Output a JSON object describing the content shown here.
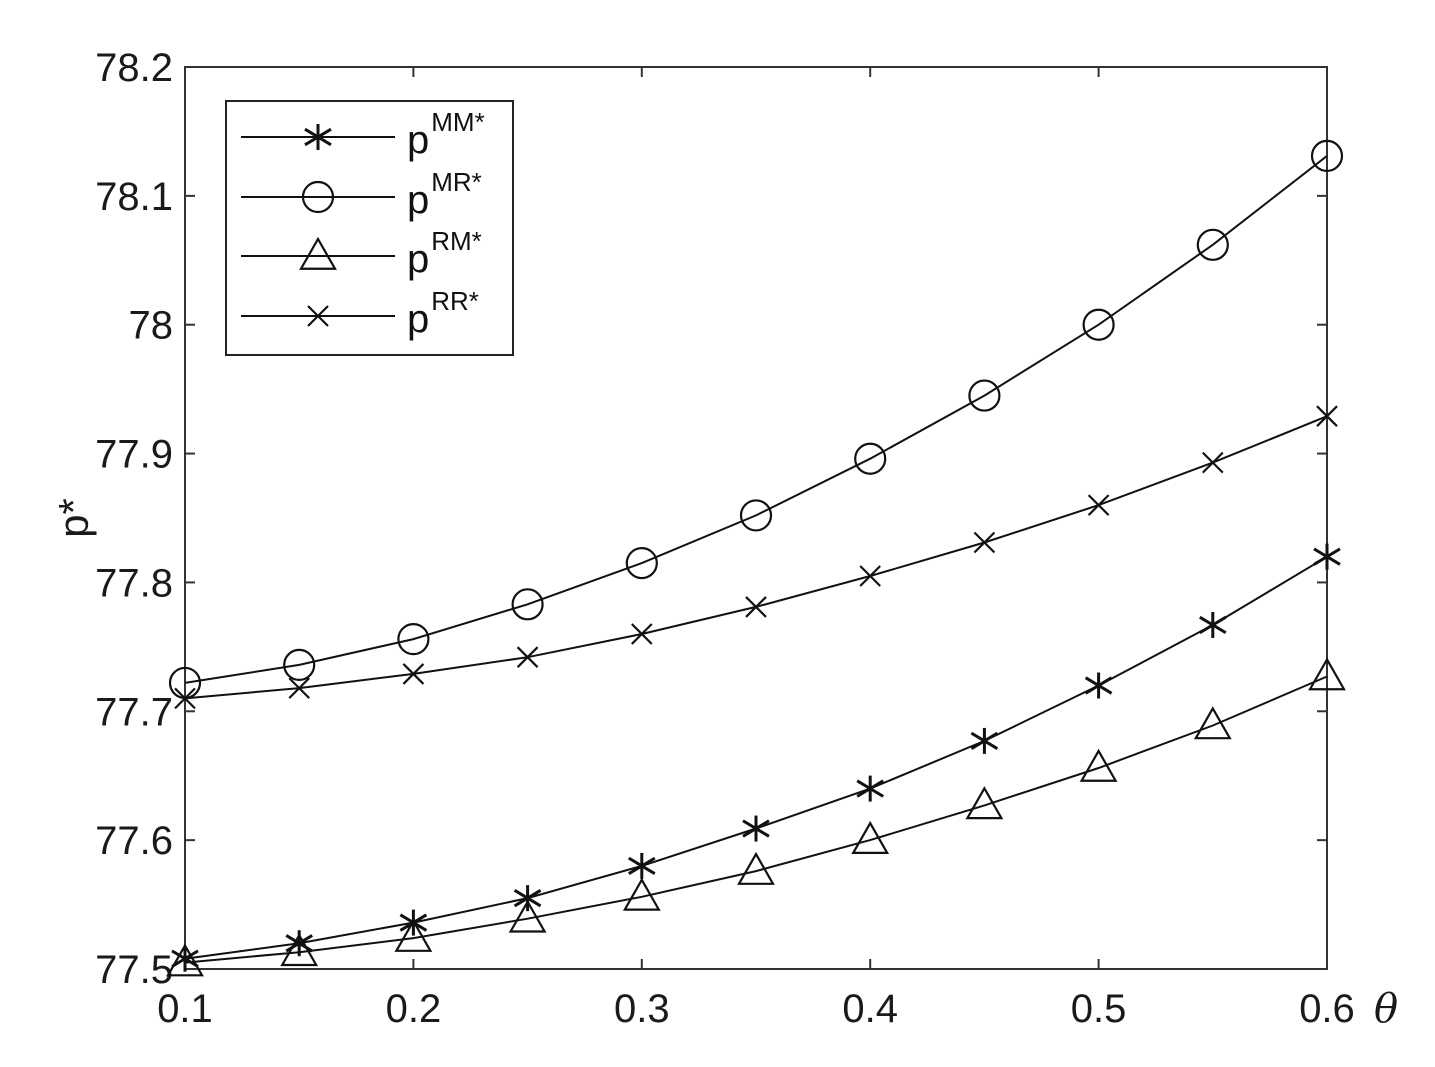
{
  "chart_data": {
    "type": "line",
    "xlabel": "θ",
    "ylabel": "p*",
    "xlim": [
      0.1,
      0.6
    ],
    "ylim": [
      77.5,
      78.2
    ],
    "x_ticks": [
      "0.1",
      "0.2",
      "0.3",
      "0.4",
      "0.5",
      "0.6"
    ],
    "y_ticks": [
      "77.5",
      "77.6",
      "77.7",
      "77.8",
      "77.9",
      "78",
      "78.1",
      "78.2"
    ],
    "grid": false,
    "legend_position": "top-left",
    "x": [
      0.1,
      0.15,
      0.2,
      0.25,
      0.3,
      0.35,
      0.4,
      0.45,
      0.5,
      0.55,
      0.6
    ],
    "series": [
      {
        "name": "p",
        "name_sup": "MM*",
        "marker": "asterisk",
        "values": [
          77.508,
          77.52,
          77.536,
          77.555,
          77.58,
          77.609,
          77.64,
          77.677,
          77.72,
          77.767,
          77.82
        ]
      },
      {
        "name": "p",
        "name_sup": "MR*",
        "marker": "circle",
        "values": [
          77.722,
          77.736,
          77.756,
          77.783,
          77.815,
          77.852,
          77.896,
          77.945,
          78.0,
          78.062,
          78.131
        ]
      },
      {
        "name": "p",
        "name_sup": "RM*",
        "marker": "triangle",
        "values": [
          77.505,
          77.513,
          77.524,
          77.539,
          77.556,
          77.576,
          77.6,
          77.627,
          77.656,
          77.689,
          77.727
        ]
      },
      {
        "name": "p",
        "name_sup": "RR*",
        "marker": "x",
        "values": [
          77.71,
          77.718,
          77.729,
          77.742,
          77.76,
          77.781,
          77.805,
          77.831,
          77.86,
          77.893,
          77.929
        ]
      }
    ],
    "colors": {
      "line": "#111111",
      "axis": "#333333",
      "background": "#ffffff"
    }
  }
}
